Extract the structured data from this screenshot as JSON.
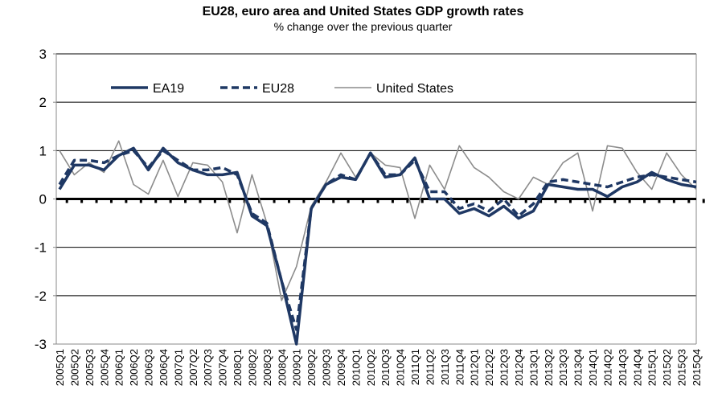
{
  "chart_data": {
    "type": "line",
    "title": "EU28, euro area and United States GDP growth rates",
    "subtitle": "% change over the previous quarter",
    "xlabel": "",
    "ylabel": "",
    "ylim": [
      -3,
      3
    ],
    "yticks": [
      "3",
      "2",
      "1",
      "0",
      "-1",
      "-2",
      "-3"
    ],
    "grid": true,
    "legend_placement": "top-left",
    "x": [
      "2005Q1",
      "2005Q2",
      "2005Q3",
      "2005Q4",
      "2006Q1",
      "2006Q2",
      "2006Q3",
      "2006Q4",
      "2007Q1",
      "2007Q2",
      "2007Q3",
      "2007Q4",
      "2008Q1",
      "2008Q2",
      "2008Q3",
      "2008Q4",
      "2009Q1",
      "2009Q2",
      "2009Q3",
      "2009Q4",
      "2010Q1",
      "2010Q2",
      "2010Q3",
      "2010Q4",
      "2011Q1",
      "2011Q2",
      "2011Q3",
      "2011Q4",
      "2012Q1",
      "2012Q2",
      "2012Q3",
      "2012Q4",
      "2013Q1",
      "2013Q2",
      "2013Q3",
      "2013Q4",
      "2014Q1",
      "2014Q2",
      "2014Q3",
      "2014Q4",
      "2015Q1",
      "2015Q2",
      "2015Q3",
      "2015Q4"
    ],
    "series": [
      {
        "name": "EA19",
        "style": "solid-thick",
        "color": "#1f3864",
        "values": [
          0.2,
          0.7,
          0.7,
          0.6,
          0.9,
          1.05,
          0.6,
          1.05,
          0.75,
          0.6,
          0.5,
          0.5,
          0.55,
          -0.35,
          -0.55,
          -1.7,
          -3.0,
          -0.2,
          0.3,
          0.45,
          0.4,
          0.95,
          0.45,
          0.5,
          0.85,
          0.0,
          0.0,
          -0.3,
          -0.2,
          -0.35,
          -0.15,
          -0.4,
          -0.25,
          0.3,
          0.25,
          0.2,
          0.2,
          0.05,
          0.25,
          0.35,
          0.55,
          0.4,
          0.3,
          0.25
        ]
      },
      {
        "name": "EU28",
        "style": "dashed-thick",
        "color": "#1f3864",
        "values": [
          0.3,
          0.8,
          0.8,
          0.75,
          0.9,
          1.0,
          0.65,
          1.0,
          0.8,
          0.6,
          0.6,
          0.65,
          0.5,
          -0.3,
          -0.5,
          -1.7,
          -2.7,
          -0.2,
          0.3,
          0.5,
          0.4,
          0.95,
          0.5,
          0.5,
          0.8,
          0.15,
          0.15,
          -0.2,
          -0.1,
          -0.25,
          0.0,
          -0.35,
          -0.1,
          0.35,
          0.4,
          0.35,
          0.3,
          0.25,
          0.35,
          0.45,
          0.5,
          0.45,
          0.4,
          0.35
        ]
      },
      {
        "name": "United States",
        "style": "solid-thin",
        "color": "#8c8c8c",
        "values": [
          1.0,
          0.5,
          0.75,
          0.55,
          1.2,
          0.3,
          0.1,
          0.8,
          0.05,
          0.75,
          0.7,
          0.35,
          -0.7,
          0.5,
          -0.5,
          -2.1,
          -1.4,
          -0.15,
          0.35,
          0.95,
          0.45,
          0.95,
          0.7,
          0.65,
          -0.4,
          0.7,
          0.2,
          1.1,
          0.65,
          0.45,
          0.15,
          0.0,
          0.45,
          0.3,
          0.75,
          0.95,
          -0.25,
          1.1,
          1.05,
          0.55,
          0.2,
          0.95,
          0.5,
          0.2
        ]
      }
    ]
  }
}
